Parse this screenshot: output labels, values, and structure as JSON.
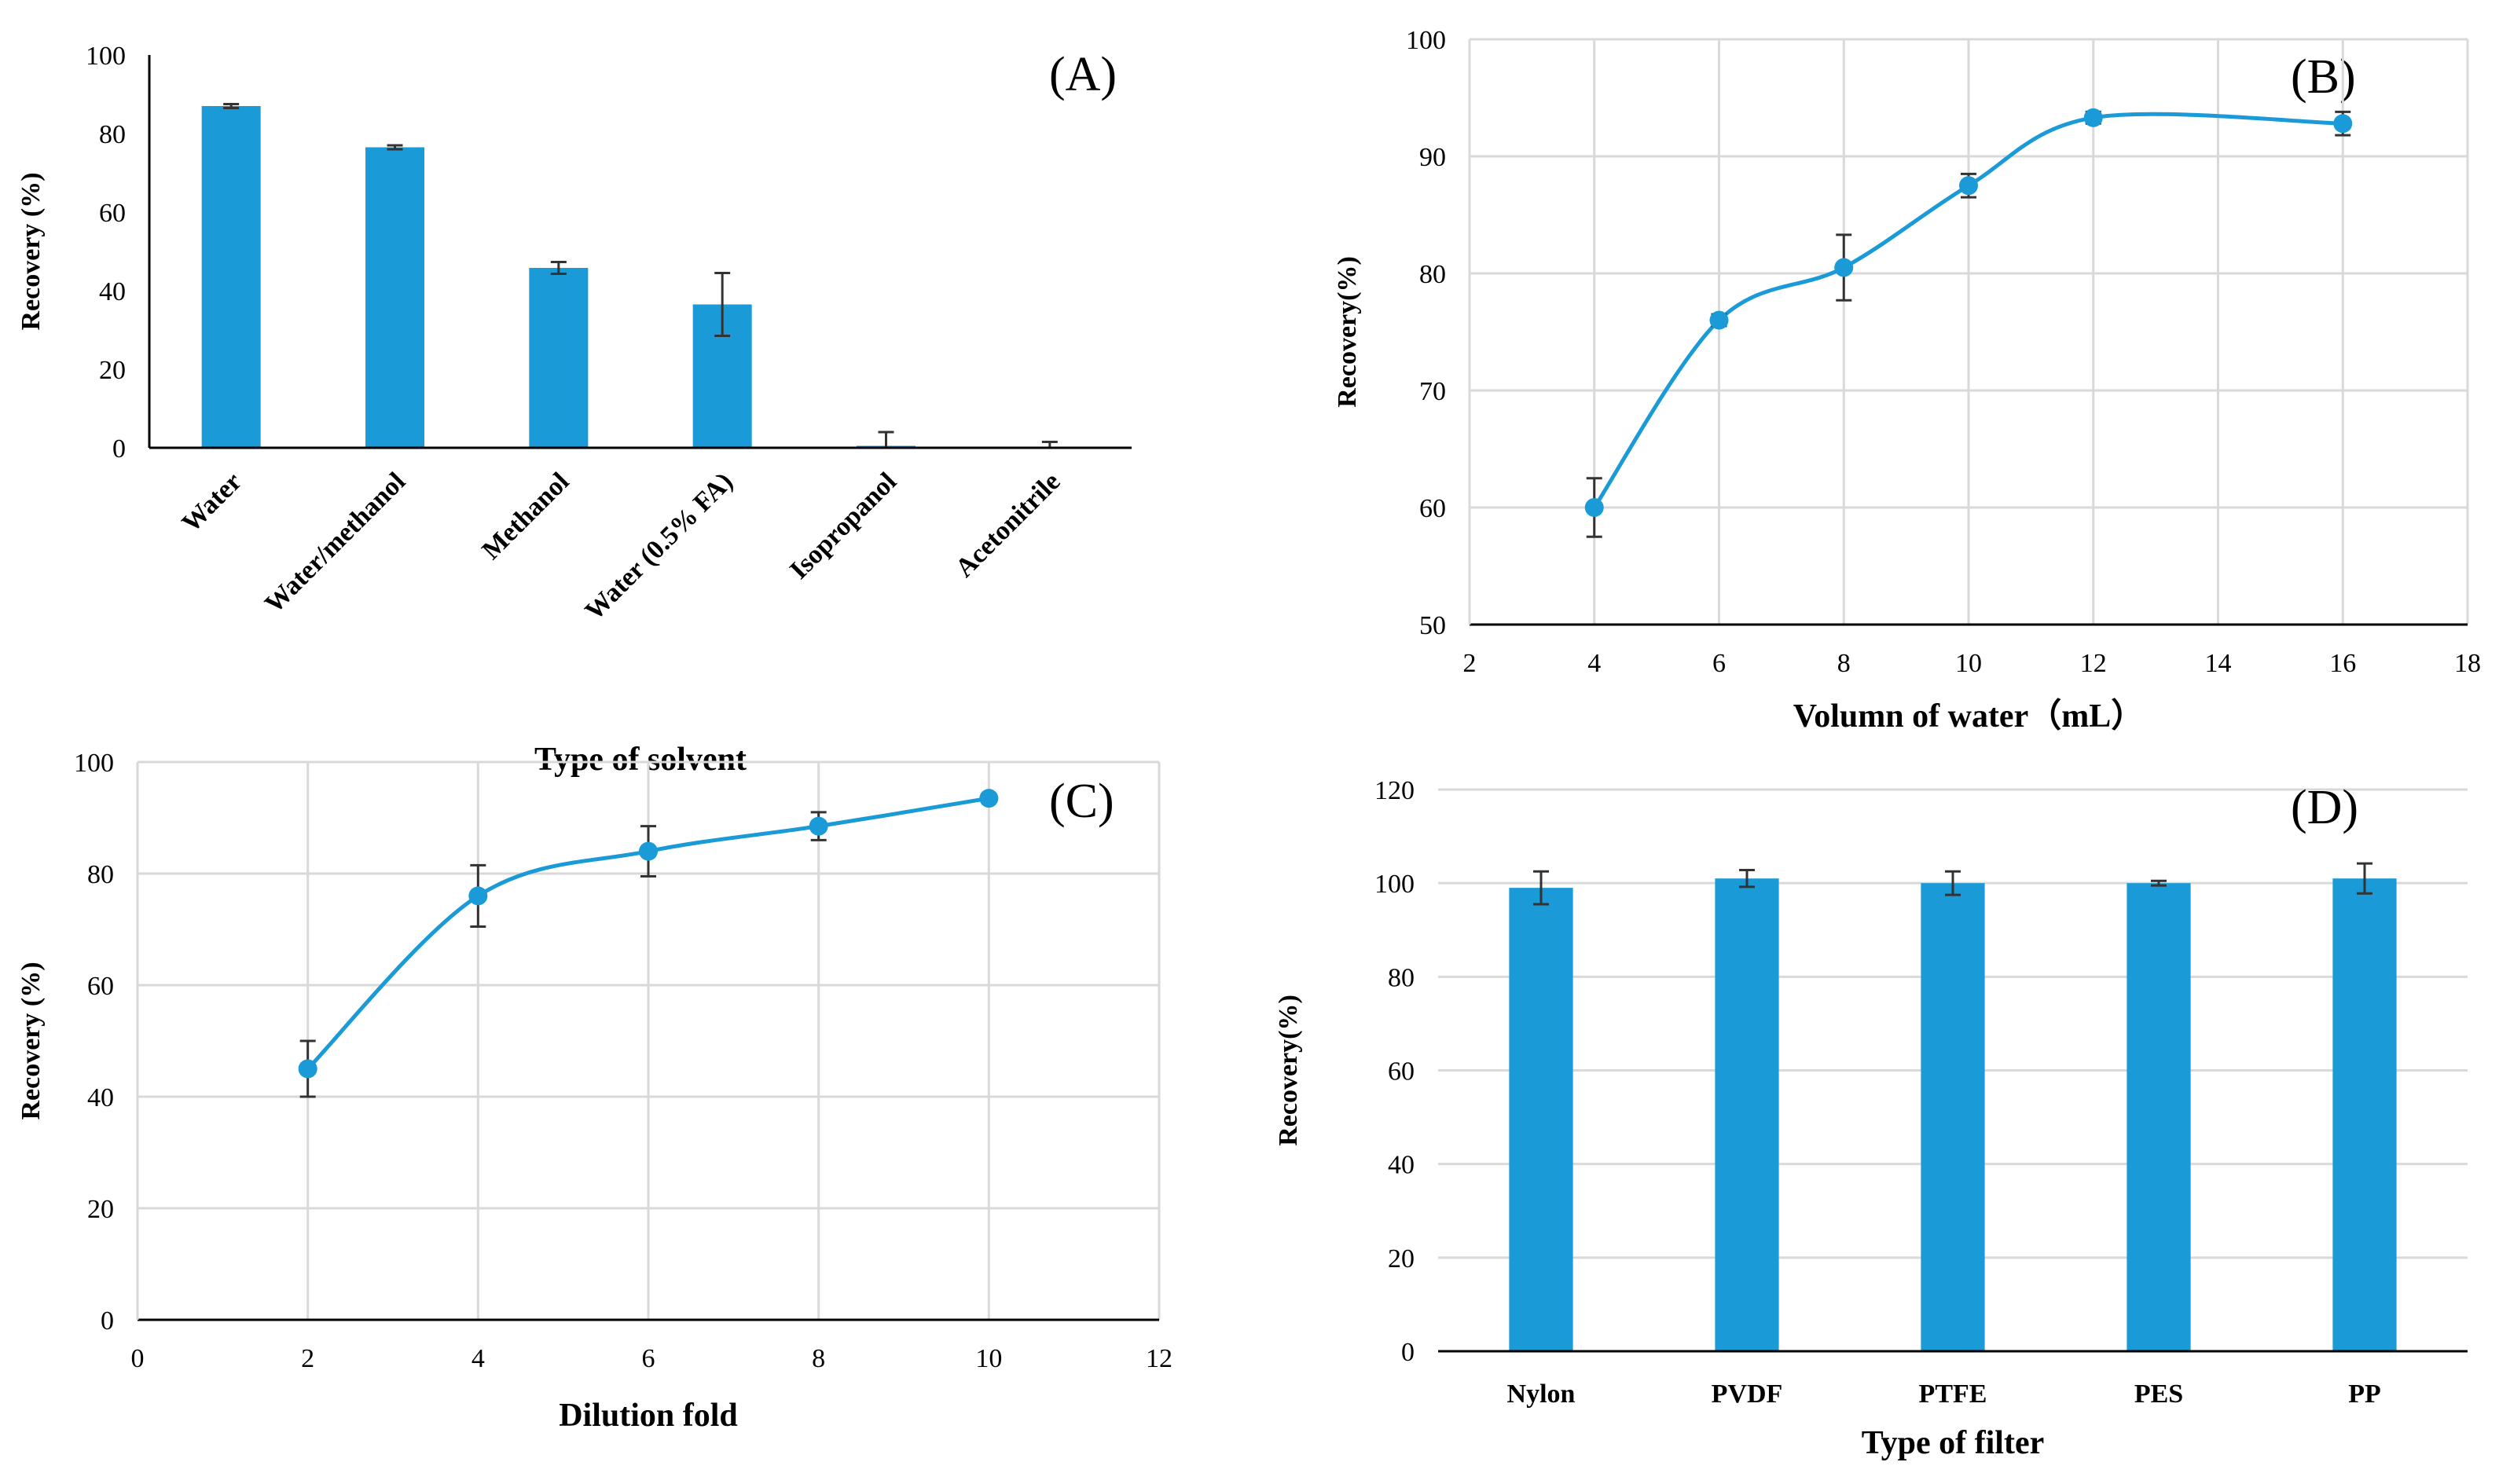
{
  "colors": {
    "series": "#1a9ad6",
    "grid": "#d9d9d9",
    "axis": "#000000",
    "errorbar": "#333333"
  },
  "chart_data": [
    {
      "id": "A",
      "type": "bar",
      "panel_label": "(A)",
      "title": "",
      "xlabel": "Type of solvent",
      "ylabel": "Recovery (%)",
      "categories": [
        "Water",
        "Water/methanol",
        "Methanol",
        "Water (0.5% FA)",
        "Isopropanol",
        "Acetonitrile"
      ],
      "values": [
        87,
        76.5,
        45.8,
        36.5,
        0.5,
        0
      ],
      "errors": [
        0.5,
        0.5,
        1.5,
        8,
        3.5,
        1.5
      ],
      "ylim": [
        0,
        100
      ],
      "yticks": [
        0,
        20,
        40,
        60,
        80,
        100
      ],
      "grid": false
    },
    {
      "id": "B",
      "type": "line",
      "panel_label": "(B)",
      "title": "",
      "xlabel": "Volumn of water（mL）",
      "ylabel": "Recovery(%)",
      "x": [
        4,
        6,
        8,
        10,
        12,
        16
      ],
      "y": [
        60,
        76,
        80.5,
        87.5,
        93.3,
        92.8
      ],
      "errors": [
        2.5,
        0.5,
        2.8,
        1,
        0.5,
        1
      ],
      "xlim": [
        2,
        18
      ],
      "xticks": [
        2,
        4,
        6,
        8,
        10,
        12,
        14,
        16,
        18
      ],
      "ylim": [
        50,
        100
      ],
      "yticks": [
        50,
        60,
        70,
        80,
        90,
        100
      ],
      "grid": true
    },
    {
      "id": "C",
      "type": "line",
      "panel_label": "(C)",
      "title": "",
      "xlabel": "Dilution fold",
      "ylabel": "Recovery (%)",
      "x": [
        2,
        4,
        6,
        8,
        10
      ],
      "y": [
        45,
        76,
        84,
        88.5,
        93.5
      ],
      "errors": [
        5,
        5.5,
        4.5,
        2.5,
        0.5
      ],
      "xlim": [
        0,
        12
      ],
      "xticks": [
        0,
        2,
        4,
        6,
        8,
        10,
        12
      ],
      "ylim": [
        0,
        100
      ],
      "yticks": [
        0,
        20,
        40,
        60,
        80,
        100
      ],
      "grid": true
    },
    {
      "id": "D",
      "type": "bar",
      "panel_label": "(D)",
      "title": "",
      "xlabel": "Type of filter",
      "ylabel": "Recovery(%)",
      "categories": [
        "Nylon",
        "PVDF",
        "PTFE",
        "PES",
        "PP"
      ],
      "values": [
        99,
        101,
        100,
        100,
        101
      ],
      "errors": [
        3.5,
        1.8,
        2.5,
        0.5,
        3.2
      ],
      "ylim": [
        0,
        120
      ],
      "yticks": [
        0,
        20,
        40,
        60,
        80,
        100,
        120
      ],
      "grid": true
    }
  ]
}
